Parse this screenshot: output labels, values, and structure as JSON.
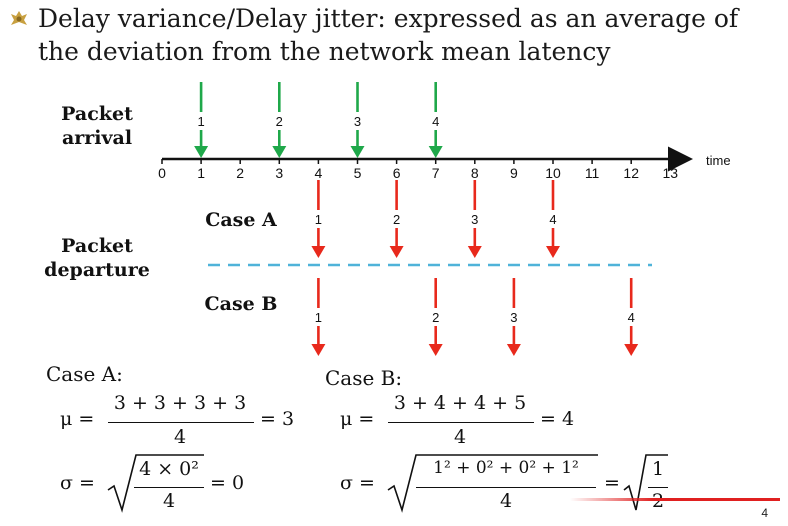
{
  "slide": {
    "title": "Delay variance/Delay jitter: expressed as an average of the deviation from the network mean latency",
    "page_number": "4",
    "accent_color": "#e02020",
    "bullet_color": "#c8a040"
  },
  "diagram": {
    "arrival_label": "Packet\narrival",
    "departure_label": "Packet\ndeparture",
    "case_a_label": "Case A",
    "case_b_label": "Case B",
    "time_label": "time",
    "ticks": [
      "0",
      "1",
      "2",
      "3",
      "4",
      "5",
      "6",
      "7",
      "8",
      "9",
      "10",
      "11",
      "12",
      "13"
    ],
    "arrival_color": "#1fa84a",
    "departure_color": "#e8291c",
    "divider_color": "#4fb3d9",
    "arrivals": [
      {
        "packet": "1",
        "time": 1
      },
      {
        "packet": "2",
        "time": 3
      },
      {
        "packet": "3",
        "time": 5
      },
      {
        "packet": "4",
        "time": 7
      }
    ],
    "case_a": [
      {
        "packet": "1",
        "time": 4
      },
      {
        "packet": "2",
        "time": 6
      },
      {
        "packet": "3",
        "time": 8
      },
      {
        "packet": "4",
        "time": 10
      }
    ],
    "case_b": [
      {
        "packet": "1",
        "time": 4
      },
      {
        "packet": "2",
        "time": 7
      },
      {
        "packet": "3",
        "time": 9
      },
      {
        "packet": "4",
        "time": 12
      }
    ]
  },
  "formulas": {
    "case_a": {
      "heading": "Case A:",
      "mu_symbol": "μ =",
      "mu_numerator": "3 + 3 + 3 + 3",
      "mu_denominator": "4",
      "mu_result": "= 3",
      "sigma_symbol": "σ =",
      "sigma_numerator": "4 × 0²",
      "sigma_denominator": "4",
      "sigma_result": "= 0"
    },
    "case_b": {
      "heading": "Case B:",
      "mu_symbol": "μ =",
      "mu_numerator": "3 + 4 + 4 + 5",
      "mu_denominator": "4",
      "mu_result": "= 4",
      "sigma_symbol": "σ =",
      "sigma_numerator": "1² + 0² + 0² + 1²",
      "sigma_denominator": "4",
      "sigma_eq": "=",
      "sigma_result_numerator": "1",
      "sigma_result_denominator": "2"
    }
  }
}
